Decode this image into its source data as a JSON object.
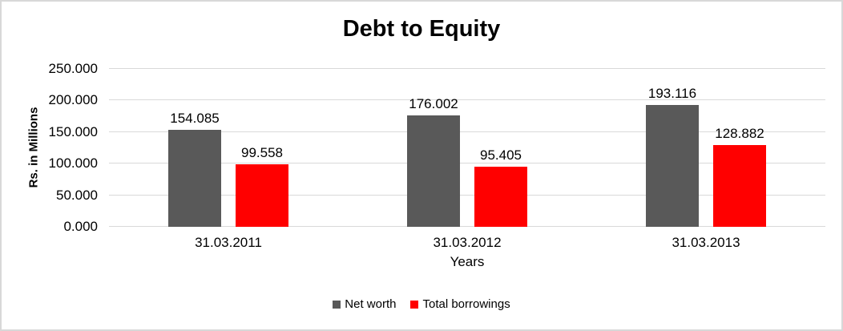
{
  "frame": {
    "background": "#ffffff",
    "border_color": "#d8d8d8"
  },
  "chart_data": {
    "type": "bar",
    "title": "Debt to Equity",
    "xlabel": "Years",
    "ylabel": "Rs. in Millions",
    "categories": [
      "31.03.2011",
      "31.03.2012",
      "31.03.2013"
    ],
    "series": [
      {
        "name": "Net worth",
        "color": "#595959",
        "values": [
          154.085,
          176.002,
          193.116
        ],
        "labels": [
          "154.085",
          "176.002",
          "193.116"
        ]
      },
      {
        "name": "Total borrowings",
        "color": "#ff0000",
        "values": [
          99.558,
          95.405,
          128.882
        ],
        "labels": [
          "99.558",
          "95.405",
          "128.882"
        ]
      }
    ],
    "ylim": [
      0,
      250
    ],
    "y_ticks": [
      {
        "value": 0,
        "label": "0.000"
      },
      {
        "value": 50,
        "label": "50.000"
      },
      {
        "value": 100,
        "label": "100.000"
      },
      {
        "value": 150,
        "label": "150.000"
      },
      {
        "value": 200,
        "label": "200.000"
      },
      {
        "value": 250,
        "label": "250.000"
      }
    ],
    "grid": true,
    "gridline_color": "#d9d9d9",
    "legend_position": "bottom"
  }
}
